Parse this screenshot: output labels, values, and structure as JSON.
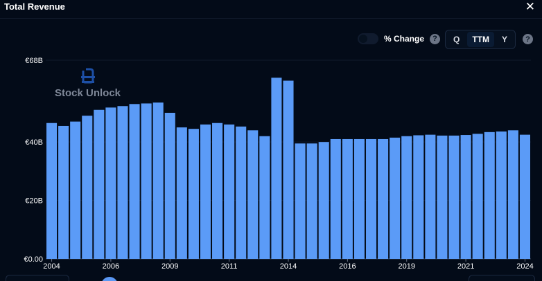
{
  "header": {
    "title": "Total Revenue",
    "close_symbol": "✕"
  },
  "controls": {
    "percent_change_label": "% Change",
    "help_symbol": "?",
    "periods": [
      "Q",
      "TTM",
      "Y"
    ],
    "active_period": "TTM"
  },
  "watermark": {
    "text": "Stock Unlock"
  },
  "colors": {
    "background": "#030b18",
    "bar": "#5b9bf7",
    "bar_edge": "#0a1628",
    "grid": "#111b2b",
    "axis_text": "#ffffff",
    "watermark": "#7f8898",
    "logo": "#1d4fa5"
  },
  "chart_data": {
    "type": "bar",
    "title": "Total Revenue",
    "xlabel": "",
    "ylabel": "",
    "ylim": [
      0,
      68
    ],
    "y_unit": "€B",
    "y_ticks": [
      "€0.00",
      "€20B",
      "€40B",
      "€68B"
    ],
    "y_tick_values": [
      0,
      20,
      40,
      68
    ],
    "x_ticks": [
      "2004",
      "2006",
      "2009",
      "2011",
      "2014",
      "2016",
      "2019",
      "2021",
      "2024"
    ],
    "x_tick_bar_index": [
      0,
      5,
      10,
      15,
      20,
      25,
      30,
      35,
      40
    ],
    "grid": true,
    "values": [
      46.5,
      45.5,
      47,
      49,
      51,
      51.8,
      52.3,
      53,
      53.2,
      53.5,
      50,
      45,
      44.5,
      46,
      46.5,
      46,
      45.3,
      44,
      42,
      62,
      61,
      39.5,
      39.5,
      40,
      41,
      41,
      41,
      41,
      41,
      41.5,
      42,
      42.3,
      42.5,
      42.2,
      42.2,
      42.4,
      42.8,
      43.4,
      43.6,
      44,
      42.5
    ]
  }
}
